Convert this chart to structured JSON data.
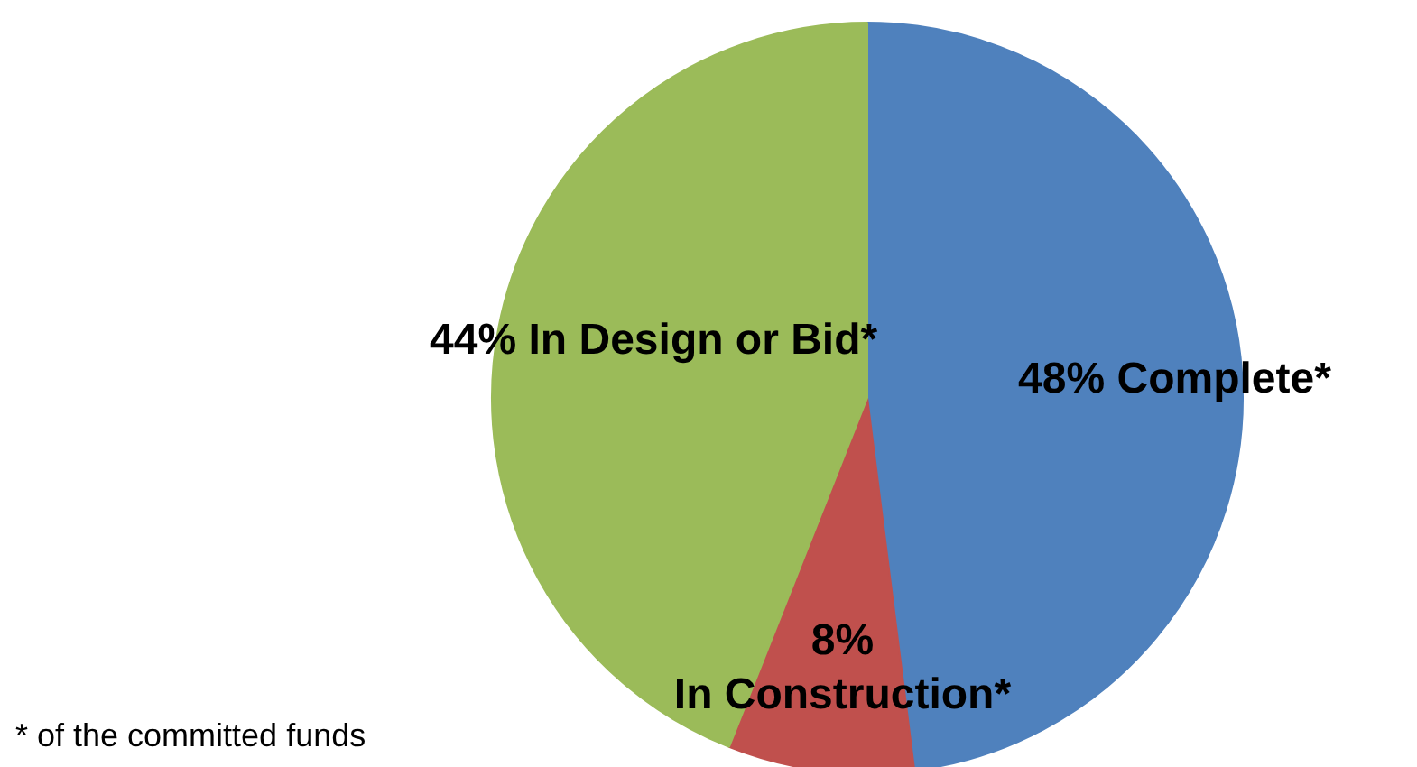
{
  "chart_data": {
    "type": "pie",
    "categories": [
      "Complete*",
      "In Construction*",
      "In Design or Bid*"
    ],
    "values": [
      48,
      8,
      44
    ],
    "colors": [
      "#4f81bd",
      "#c0504d",
      "#9bbb59"
    ],
    "value_labels": [
      "48%",
      "8%",
      "44%"
    ],
    "annotations": [
      "* of the committed funds"
    ]
  }
}
